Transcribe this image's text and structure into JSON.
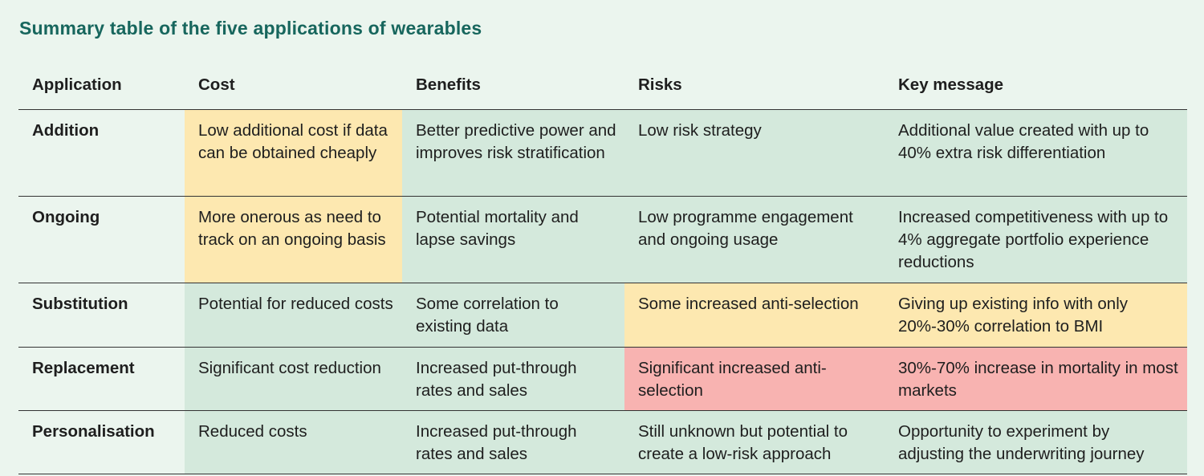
{
  "title": "Summary table of the five applications of wearables",
  "colors": {
    "title": "#17665d",
    "green": "#d4e9dc",
    "yellow": "#fde8b0",
    "red": "#f8b3b1",
    "background": "#ebf5ee"
  },
  "headers": [
    "Application",
    "Cost",
    "Benefits",
    "Risks",
    "Key message"
  ],
  "rows": [
    {
      "cells": [
        "Addition",
        "Low additional cost if data can be obtained cheaply",
        "Better predictive power and improves risk stratification",
        "Low risk strategy",
        "Additional value created with up to 40% extra risk differentiation"
      ],
      "ratings": [
        "none",
        "yellow",
        "green",
        "green",
        "green"
      ]
    },
    {
      "cells": [
        "Ongoing",
        "More onerous as need to track on an ongoing basis",
        "Potential mortality and lapse savings",
        "Low programme engagement and ongoing usage",
        "Increased competitiveness with up to 4% aggregate portfolio experience reductions"
      ],
      "ratings": [
        "none",
        "yellow",
        "green",
        "green",
        "green"
      ]
    },
    {
      "cells": [
        "Substitution",
        "Potential for reduced costs",
        "Some correlation to existing data",
        "Some increased anti-selection",
        "Giving up existing info with only 20%-30% correlation to BMI"
      ],
      "ratings": [
        "none",
        "green",
        "green",
        "yellow",
        "yellow"
      ]
    },
    {
      "cells": [
        "Replacement",
        "Significant cost reduction",
        "Increased put-through rates and sales",
        "Significant increased anti-selection",
        "30%-70% increase in mortality in most markets"
      ],
      "ratings": [
        "none",
        "green",
        "green",
        "red",
        "red"
      ]
    },
    {
      "cells": [
        "Personalisation",
        "Reduced costs",
        "Increased put-through rates and sales",
        "Still unknown but potential to create a low-risk approach",
        "Opportunity to experiment by adjusting the underwriting journey"
      ],
      "ratings": [
        "none",
        "green",
        "green",
        "green",
        "green"
      ]
    }
  ]
}
